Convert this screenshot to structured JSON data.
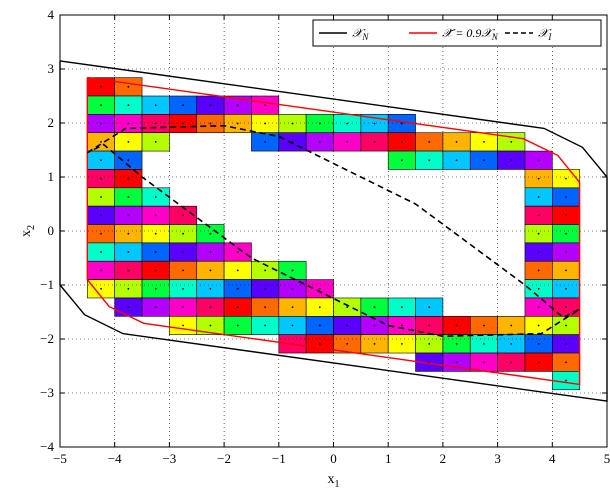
{
  "chart_data": {
    "type": "line",
    "xlabel": "x",
    "xlabel_sub": "1",
    "ylabel": "x",
    "ylabel_sub": "2",
    "xlim": [
      -5,
      5
    ],
    "ylim": [
      -4,
      4
    ],
    "xticks": [
      -5,
      -4,
      -3,
      -2,
      -1,
      0,
      1,
      2,
      3,
      4,
      5
    ],
    "yticks": [
      -4,
      -3,
      -2,
      -1,
      0,
      1,
      2,
      3,
      4
    ],
    "xtick_labels": [
      "−5",
      "−4",
      "−3",
      "−2",
      "−1",
      "0",
      "1",
      "2",
      "3",
      "4",
      "5"
    ],
    "ytick_labels": [
      "−4",
      "−3",
      "−2",
      "−1",
      "0",
      "1",
      "2",
      "3",
      "4"
    ],
    "grid": true,
    "legend_position": "top-right",
    "legend": [
      {
        "label": "𝒳",
        "sub": "N",
        "color": "#000000",
        "dash": "solid"
      },
      {
        "label": "𝒳̃ = 0.9𝒳",
        "sub": "N",
        "color": "#ff0000",
        "dash": "solid"
      },
      {
        "label": "𝒳",
        "sub": "I",
        "color": "#000000",
        "dash": "dashed"
      }
    ],
    "series": [
      {
        "name": "X_N",
        "color": "#000000",
        "points": [
          [
            -5,
            3.15
          ],
          [
            3.85,
            1.9
          ],
          [
            4.55,
            1.55
          ],
          [
            5,
            1.0
          ],
          [
            5,
            -3.15
          ],
          [
            -3.85,
            -1.9
          ],
          [
            -4.55,
            -1.55
          ],
          [
            -5,
            -1.0
          ],
          [
            -5,
            3.15
          ]
        ]
      },
      {
        "name": "X_tilde",
        "color": "#ff0000",
        "points": [
          [
            -4.5,
            2.84
          ],
          [
            3.47,
            1.71
          ],
          [
            4.1,
            1.4
          ],
          [
            4.5,
            0.9
          ],
          [
            4.5,
            -2.84
          ],
          [
            -3.47,
            -1.71
          ],
          [
            -4.1,
            -1.4
          ],
          [
            -4.5,
            -0.9
          ],
          [
            -4.5,
            2.84
          ]
        ]
      },
      {
        "name": "X_I",
        "color": "#000000",
        "dash": "dashed",
        "points": [
          [
            -4.5,
            1.45
          ],
          [
            -3.8,
            1.9
          ],
          [
            -2.0,
            1.95
          ],
          [
            -1.0,
            1.75
          ],
          [
            1.5,
            0.5
          ],
          [
            3.5,
            -1.0
          ],
          [
            4.2,
            -1.6
          ],
          [
            4.5,
            -1.45
          ],
          [
            3.8,
            -1.9
          ],
          [
            2.0,
            -1.95
          ],
          [
            1.0,
            -1.75
          ],
          [
            -1.5,
            -0.5
          ],
          [
            -3.5,
            1.0
          ],
          [
            -4.2,
            1.6
          ],
          [
            -4.5,
            1.45
          ]
        ]
      }
    ],
    "grid_cells": {
      "cell_width": 0.5,
      "cell_height": 0.34,
      "x_start": -4.5,
      "y_top": 2.84,
      "rows": 17,
      "cols": 18
    }
  }
}
